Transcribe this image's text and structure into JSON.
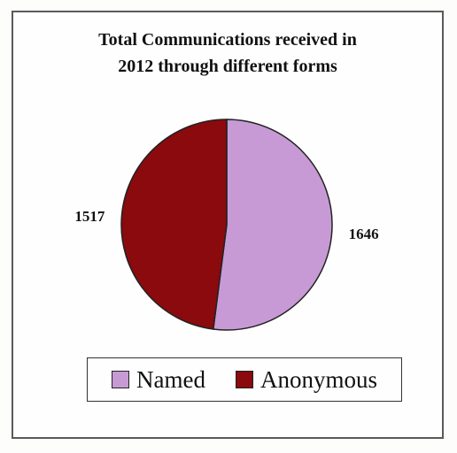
{
  "chart_data": {
    "type": "pie",
    "title_lines": [
      "Total Communications received in",
      "2012 through different forms"
    ],
    "slices": [
      {
        "name": "Named",
        "value": 1646,
        "color": "#c79ad6"
      },
      {
        "name": "Anonymous",
        "value": 1517,
        "color": "#8a0a0d"
      }
    ],
    "legend_placement": "bottom"
  }
}
